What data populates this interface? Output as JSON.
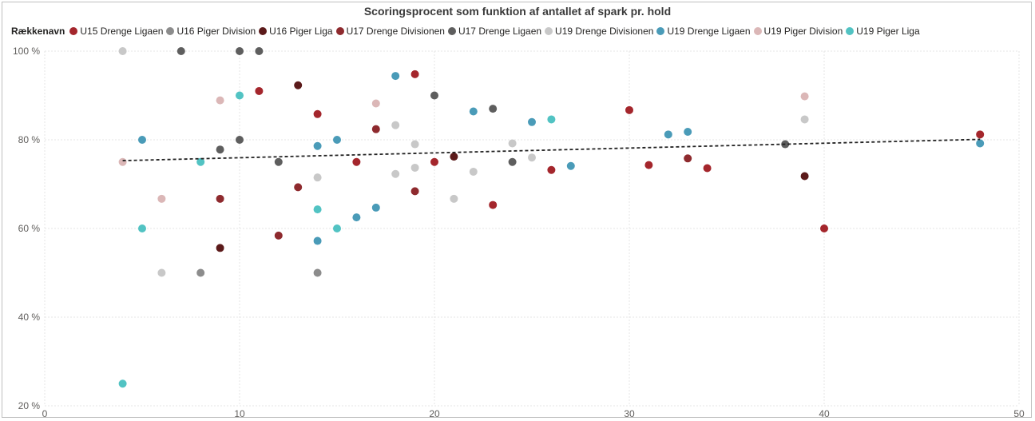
{
  "chart_data": {
    "type": "scatter",
    "title": "Scoringsprocent som funktion af antallet af spark pr. hold",
    "legend_title": "Rækkenavn",
    "legend_position": "top-left",
    "xlabel": "",
    "ylabel": "",
    "xlim": [
      0,
      50
    ],
    "ylim": [
      20,
      100
    ],
    "x_ticks": [
      0,
      10,
      20,
      30,
      40,
      50
    ],
    "y_ticks": [
      20,
      40,
      60,
      80,
      100
    ],
    "y_tick_labels": [
      "20 %",
      "40 %",
      "60 %",
      "80 %",
      "100 %"
    ],
    "grid": true,
    "trend_line": {
      "x": [
        4,
        48
      ],
      "y": [
        75.3,
        80.1
      ],
      "style": "dashed"
    },
    "series": [
      {
        "name": "U15 Drenge Ligaen",
        "color": "#a4262c",
        "points": [
          [
            11,
            91
          ],
          [
            14,
            85.8
          ],
          [
            16,
            75
          ],
          [
            19,
            94.8
          ],
          [
            20,
            75
          ],
          [
            23,
            65.3
          ],
          [
            26,
            73.2
          ],
          [
            30,
            86.7
          ],
          [
            31,
            74.3
          ],
          [
            34,
            73.6
          ],
          [
            40,
            60
          ],
          [
            48,
            81.2
          ]
        ]
      },
      {
        "name": "U16 Piger Division",
        "color": "#8c8c8c",
        "points": [
          [
            8,
            50
          ],
          [
            14,
            50
          ]
        ]
      },
      {
        "name": "U16 Piger Liga",
        "color": "#5b1a1a",
        "points": [
          [
            9,
            55.6
          ],
          [
            13,
            92.3
          ],
          [
            21,
            76.2
          ],
          [
            39,
            71.8
          ]
        ]
      },
      {
        "name": "U17 Drenge Divisionen",
        "color": "#8e2a2e",
        "points": [
          [
            9,
            66.7
          ],
          [
            12,
            58.4
          ],
          [
            13,
            69.3
          ],
          [
            17,
            82.4
          ],
          [
            19,
            68.4
          ],
          [
            33,
            75.8
          ]
        ]
      },
      {
        "name": "U17 Drenge Ligaen",
        "color": "#5e5e5e",
        "points": [
          [
            7,
            100
          ],
          [
            9,
            77.8
          ],
          [
            10,
            100
          ],
          [
            10,
            80
          ],
          [
            11,
            100
          ],
          [
            12,
            75
          ],
          [
            20,
            90
          ],
          [
            23,
            87
          ],
          [
            24,
            75
          ],
          [
            38,
            79
          ]
        ]
      },
      {
        "name": "U19 Drenge Divisionen",
        "color": "#c8c8c8",
        "points": [
          [
            4,
            100
          ],
          [
            6,
            50
          ],
          [
            14,
            71.5
          ],
          [
            18,
            72.3
          ],
          [
            18,
            83.3
          ],
          [
            19,
            79
          ],
          [
            19,
            73.7
          ],
          [
            21,
            66.7
          ],
          [
            22,
            72.8
          ],
          [
            24,
            79.2
          ],
          [
            25,
            76
          ],
          [
            39,
            84.6
          ]
        ]
      },
      {
        "name": "U19 Drenge Ligaen",
        "color": "#4a9bb8",
        "points": [
          [
            5,
            80
          ],
          [
            14,
            78.6
          ],
          [
            14,
            57.2
          ],
          [
            15,
            80
          ],
          [
            16,
            62.5
          ],
          [
            17,
            64.7
          ],
          [
            18,
            94.4
          ],
          [
            22,
            86.4
          ],
          [
            25,
            84
          ],
          [
            27,
            74.1
          ],
          [
            32,
            81.2
          ],
          [
            33,
            81.8
          ],
          [
            48,
            79.2
          ]
        ]
      },
      {
        "name": "U19 Piger Division",
        "color": "#dbb7b7",
        "points": [
          [
            4,
            75
          ],
          [
            6,
            66.7
          ],
          [
            9,
            88.9
          ],
          [
            17,
            88.2
          ],
          [
            39,
            89.8
          ]
        ]
      },
      {
        "name": "U19 Piger Liga",
        "color": "#52c3c3",
        "points": [
          [
            4,
            25
          ],
          [
            5,
            60
          ],
          [
            8,
            75
          ],
          [
            10,
            90
          ],
          [
            14,
            64.3
          ],
          [
            15,
            60
          ],
          [
            26,
            84.6
          ]
        ]
      }
    ]
  }
}
